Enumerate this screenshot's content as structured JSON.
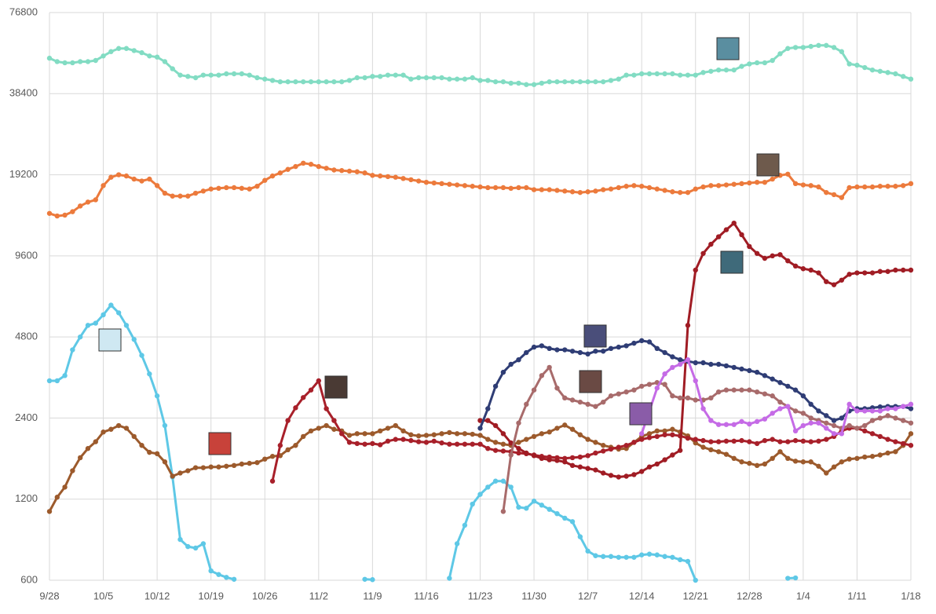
{
  "chart_data": {
    "type": "line",
    "log": true,
    "grid": true,
    "ylim": [
      600,
      76800
    ],
    "yticks": [
      600,
      1200,
      2400,
      4800,
      9600,
      19200,
      38400,
      76800
    ],
    "categories": [
      "9/28",
      null,
      null,
      null,
      null,
      null,
      null,
      "10/5",
      null,
      null,
      null,
      null,
      null,
      null,
      "10/12",
      null,
      null,
      null,
      null,
      null,
      null,
      "10/19",
      null,
      null,
      null,
      null,
      null,
      null,
      "10/26",
      null,
      null,
      null,
      null,
      null,
      null,
      "11/2",
      null,
      null,
      null,
      null,
      null,
      null,
      "11/9",
      null,
      null,
      null,
      null,
      null,
      null,
      "11/16",
      null,
      null,
      null,
      null,
      null,
      null,
      "11/23",
      null,
      null,
      null,
      null,
      null,
      null,
      "11/30",
      null,
      null,
      null,
      null,
      null,
      null,
      "12/7",
      null,
      null,
      null,
      null,
      null,
      null,
      "12/14",
      null,
      null,
      null,
      null,
      null,
      null,
      "12/21",
      null,
      null,
      null,
      null,
      null,
      null,
      "12/28",
      null,
      null,
      null,
      null,
      null,
      null,
      "1/4",
      null,
      null,
      null,
      null,
      null,
      null,
      "1/11",
      null,
      null,
      null,
      null,
      null,
      null,
      "1/18"
    ],
    "series": [
      {
        "color": "#5ec8e6",
        "values": [
          3300,
          3300,
          3450,
          4300,
          4800,
          5300,
          5400,
          5800,
          6300,
          5900,
          5300,
          4700,
          4100,
          3500,
          2900,
          2250,
          1450,
          850,
          800,
          790,
          820,
          650,
          630,
          615,
          605,
          null,
          null,
          null,
          null,
          null,
          null,
          null,
          null,
          null,
          null,
          null,
          null,
          null,
          null,
          null,
          null,
          605,
          603,
          null,
          null,
          null,
          null,
          null,
          null,
          null,
          null,
          null,
          610,
          820,
          960,
          1150,
          1250,
          1330,
          1400,
          1400,
          1330,
          1120,
          1110,
          1180,
          1140,
          1100,
          1060,
          1020,
          990,
          870,
          770,
          740,
          735,
          735,
          730,
          730,
          730,
          745,
          750,
          745,
          735,
          730,
          715,
          705,
          600,
          null,
          null,
          null,
          null,
          null,
          null,
          null,
          null,
          null,
          null,
          null,
          610,
          612,
          null,
          null,
          null,
          null,
          null,
          null,
          null,
          null,
          null,
          null,
          null,
          null,
          null,
          null,
          null
        ]
      },
      {
        "color": "#9c5a2c",
        "values": [
          1080,
          1220,
          1330,
          1530,
          1710,
          1850,
          1960,
          2130,
          2180,
          2250,
          2200,
          2050,
          1900,
          1790,
          1770,
          1650,
          1460,
          1500,
          1530,
          1570,
          1570,
          1580,
          1580,
          1590,
          1600,
          1620,
          1630,
          1640,
          1690,
          1730,
          1740,
          1830,
          1900,
          2050,
          2150,
          2200,
          2250,
          2180,
          2150,
          2070,
          2100,
          2100,
          2100,
          2150,
          2200,
          2250,
          2150,
          2080,
          2060,
          2070,
          2080,
          2100,
          2120,
          2100,
          2100,
          2090,
          2070,
          2000,
          1950,
          1920,
          1900,
          1950,
          2000,
          2050,
          2100,
          2130,
          2200,
          2260,
          2180,
          2080,
          2000,
          1950,
          1900,
          1870,
          1840,
          1850,
          1950,
          2050,
          2100,
          2150,
          2150,
          2180,
          2130,
          2060,
          1940,
          1870,
          1830,
          1800,
          1760,
          1700,
          1650,
          1630,
          1600,
          1620,
          1700,
          1800,
          1700,
          1660,
          1650,
          1650,
          1590,
          1500,
          1580,
          1650,
          1690,
          1700,
          1720,
          1730,
          1750,
          1780,
          1800,
          1900,
          2100
        ]
      },
      {
        "color": "#a8202a",
        "values": [
          null,
          null,
          null,
          null,
          null,
          null,
          null,
          null,
          null,
          null,
          null,
          null,
          null,
          null,
          null,
          null,
          null,
          null,
          null,
          null,
          null,
          null,
          null,
          null,
          null,
          null,
          null,
          null,
          null,
          1400,
          1900,
          2350,
          2620,
          2860,
          3050,
          3300,
          2600,
          2350,
          2100,
          1950,
          1930,
          1920,
          1930,
          1910,
          1970,
          2000,
          2000,
          1980,
          1960,
          1950,
          1970,
          1940,
          1920,
          1920,
          1920,
          1920,
          1920,
          1850,
          1820,
          1810,
          1800,
          1780,
          1770,
          1750,
          1730,
          1720,
          1710,
          1700,
          1710,
          1720,
          1740,
          1780,
          1810,
          1840,
          1870,
          1900,
          1950,
          2000,
          2030,
          2050,
          2080,
          2080,
          2060,
          2020,
          2000,
          1980,
          1960,
          1960,
          1970,
          1970,
          1980,
          1960,
          1930,
          1980,
          2000,
          1960,
          1960,
          1980,
          1970,
          1960,
          1970,
          2000,
          2050,
          2150,
          2200,
          2200,
          2150,
          2100,
          2050,
          2000,
          1960,
          1930,
          1900
        ]
      },
      {
        "color": "#a01c24",
        "values": [
          null,
          null,
          null,
          null,
          null,
          null,
          null,
          null,
          null,
          null,
          null,
          null,
          null,
          null,
          null,
          null,
          null,
          null,
          null,
          null,
          null,
          null,
          null,
          null,
          null,
          null,
          null,
          null,
          null,
          null,
          null,
          null,
          null,
          null,
          null,
          null,
          null,
          null,
          null,
          null,
          null,
          null,
          null,
          null,
          null,
          null,
          null,
          null,
          null,
          null,
          null,
          null,
          null,
          null,
          null,
          null,
          2350,
          2350,
          2250,
          2100,
          1940,
          1850,
          1780,
          1740,
          1700,
          1680,
          1670,
          1650,
          1600,
          1580,
          1560,
          1540,
          1500,
          1470,
          1450,
          1460,
          1480,
          1520,
          1580,
          1620,
          1680,
          1750,
          1820,
          5300,
          8500,
          9800,
          10600,
          11300,
          12000,
          12700,
          11500,
          10400,
          9800,
          9400,
          9600,
          9700,
          9200,
          8800,
          8600,
          8500,
          8300,
          7700,
          7500,
          7800,
          8200,
          8300,
          8300,
          8300,
          8400,
          8400,
          8500,
          8500,
          8500
        ]
      },
      {
        "color": "#2f3d75",
        "values": [
          null,
          null,
          null,
          null,
          null,
          null,
          null,
          null,
          null,
          null,
          null,
          null,
          null,
          null,
          null,
          null,
          null,
          null,
          null,
          null,
          null,
          null,
          null,
          null,
          null,
          null,
          null,
          null,
          null,
          null,
          null,
          null,
          null,
          null,
          null,
          null,
          null,
          null,
          null,
          null,
          null,
          null,
          null,
          null,
          null,
          null,
          null,
          null,
          null,
          null,
          null,
          null,
          null,
          null,
          null,
          null,
          2200,
          2600,
          3150,
          3550,
          3800,
          3950,
          4200,
          4400,
          4450,
          4350,
          4300,
          4300,
          4250,
          4200,
          4150,
          4250,
          4250,
          4350,
          4400,
          4450,
          4550,
          4650,
          4600,
          4350,
          4200,
          4050,
          3950,
          3900,
          3850,
          3850,
          3800,
          3800,
          3750,
          3700,
          3650,
          3600,
          3550,
          3450,
          3350,
          3250,
          3150,
          3050,
          2900,
          2700,
          2550,
          2450,
          2350,
          2400,
          2550,
          2600,
          2600,
          2620,
          2640,
          2650,
          2650,
          2650,
          2600
        ]
      },
      {
        "color": "#a86b6b",
        "values": [
          null,
          null,
          null,
          null,
          null,
          null,
          null,
          null,
          null,
          null,
          null,
          null,
          null,
          null,
          null,
          null,
          null,
          null,
          null,
          null,
          null,
          null,
          null,
          null,
          null,
          null,
          null,
          null,
          null,
          null,
          null,
          null,
          null,
          null,
          null,
          null,
          null,
          null,
          null,
          null,
          null,
          null,
          null,
          null,
          null,
          null,
          null,
          null,
          null,
          null,
          null,
          null,
          null,
          null,
          null,
          null,
          null,
          null,
          null,
          1080,
          1750,
          2300,
          2700,
          3050,
          3450,
          3700,
          3100,
          2850,
          2800,
          2750,
          2700,
          2650,
          2750,
          2900,
          2950,
          3000,
          3050,
          3150,
          3200,
          3250,
          3200,
          2900,
          2850,
          2850,
          2800,
          2800,
          2850,
          3000,
          3050,
          3050,
          3050,
          3050,
          3000,
          2950,
          2900,
          2750,
          2650,
          2550,
          2500,
          2400,
          2350,
          2300,
          2250,
          2200,
          2250,
          2200,
          2250,
          2350,
          2400,
          2450,
          2400,
          2350,
          2300
        ]
      },
      {
        "color": "#c56be6",
        "values": [
          null,
          null,
          null,
          null,
          null,
          null,
          null,
          null,
          null,
          null,
          null,
          null,
          null,
          null,
          null,
          null,
          null,
          null,
          null,
          null,
          null,
          null,
          null,
          null,
          null,
          null,
          null,
          null,
          null,
          null,
          null,
          null,
          null,
          null,
          null,
          null,
          null,
          null,
          null,
          null,
          null,
          null,
          null,
          null,
          null,
          null,
          null,
          null,
          null,
          null,
          null,
          null,
          null,
          null,
          null,
          null,
          null,
          null,
          null,
          null,
          null,
          null,
          null,
          null,
          null,
          null,
          null,
          null,
          null,
          null,
          null,
          null,
          null,
          null,
          null,
          null,
          null,
          2100,
          2550,
          3100,
          3500,
          3700,
          3800,
          3950,
          3300,
          2600,
          2350,
          2270,
          2270,
          2270,
          2330,
          2280,
          2330,
          2380,
          2500,
          2600,
          2650,
          2150,
          2250,
          2300,
          2300,
          2200,
          2100,
          2100,
          2700,
          2550,
          2550,
          2550,
          2550,
          2600,
          2600,
          2650,
          2700
        ]
      },
      {
        "color": "#ec7a3c",
        "values": [
          13800,
          13500,
          13600,
          14000,
          14700,
          15200,
          15500,
          17500,
          18800,
          19200,
          19000,
          18500,
          18200,
          18500,
          17500,
          16400,
          16000,
          16000,
          16000,
          16400,
          16700,
          17000,
          17100,
          17200,
          17200,
          17100,
          17000,
          17400,
          18300,
          19000,
          19500,
          20100,
          20600,
          21200,
          21000,
          20600,
          20300,
          20000,
          19900,
          19800,
          19700,
          19500,
          19100,
          19000,
          18900,
          18800,
          18600,
          18400,
          18200,
          18000,
          17900,
          17800,
          17700,
          17600,
          17500,
          17400,
          17300,
          17200,
          17200,
          17200,
          17100,
          17200,
          17200,
          16900,
          16900,
          16900,
          16800,
          16700,
          16600,
          16500,
          16600,
          16700,
          16900,
          17000,
          17200,
          17400,
          17500,
          17400,
          17200,
          17000,
          16800,
          16600,
          16500,
          16500,
          17000,
          17300,
          17500,
          17500,
          17600,
          17700,
          17800,
          17900,
          18000,
          18000,
          18500,
          19100,
          19300,
          17800,
          17600,
          17500,
          17300,
          16500,
          16200,
          15800,
          17200,
          17300,
          17300,
          17300,
          17400,
          17400,
          17400,
          17500,
          17800
        ]
      },
      {
        "color": "#82dcc3",
        "values": [
          52000,
          50500,
          50000,
          50000,
          50500,
          50500,
          51000,
          53000,
          55000,
          56500,
          56500,
          55500,
          54500,
          53000,
          52500,
          50500,
          47500,
          45000,
          44500,
          44000,
          45000,
          45000,
          45000,
          45500,
          45500,
          45500,
          45000,
          44000,
          43500,
          43000,
          42500,
          42500,
          42500,
          42500,
          42500,
          42500,
          42500,
          42500,
          42500,
          43000,
          44000,
          44000,
          44500,
          44500,
          45000,
          45000,
          45000,
          43500,
          44000,
          44000,
          44000,
          44000,
          43500,
          43500,
          43500,
          44000,
          43000,
          43000,
          42500,
          42500,
          42000,
          42000,
          41500,
          41500,
          42000,
          42500,
          42500,
          42500,
          42500,
          42500,
          42500,
          42500,
          42500,
          43000,
          43500,
          45000,
          45000,
          45500,
          45500,
          45500,
          45500,
          45500,
          45000,
          45000,
          45000,
          46000,
          46500,
          47000,
          47000,
          47000,
          48500,
          49500,
          50000,
          50000,
          51000,
          54000,
          56500,
          57000,
          57000,
          57500,
          58000,
          58000,
          57000,
          55000,
          49500,
          49000,
          48000,
          47000,
          46500,
          46000,
          45500,
          44500,
          43500
        ]
      }
    ]
  }
}
